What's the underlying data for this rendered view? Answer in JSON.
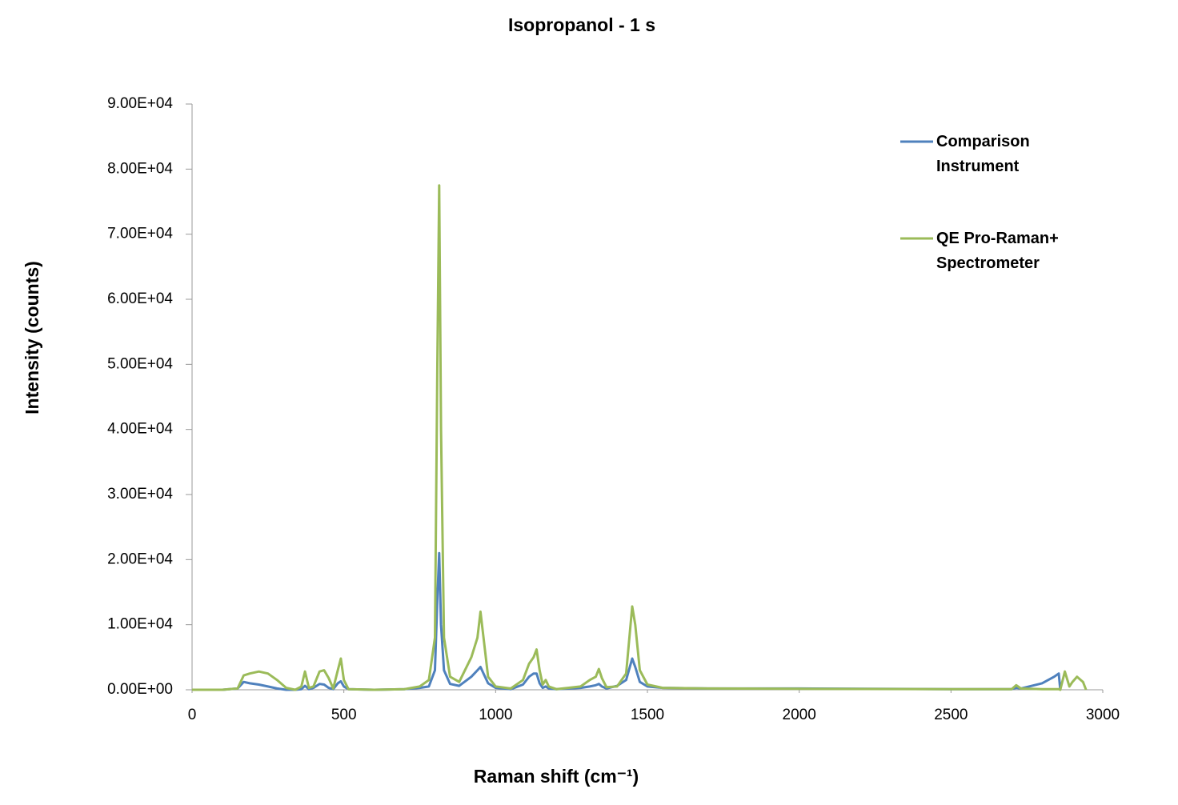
{
  "chart_data": {
    "type": "line",
    "title": "Isopropanol - 1 s",
    "x_label": "Raman shift (cm⁻¹)",
    "y_label": "Intensity (counts)",
    "x": [
      0,
      100,
      150,
      170,
      190,
      220,
      250,
      280,
      310,
      340,
      360,
      372,
      385,
      400,
      420,
      435,
      450,
      465,
      480,
      490,
      500,
      515,
      600,
      700,
      750,
      780,
      800,
      808,
      814,
      820,
      830,
      850,
      880,
      920,
      940,
      950,
      960,
      975,
      1000,
      1050,
      1090,
      1110,
      1125,
      1135,
      1145,
      1155,
      1165,
      1175,
      1200,
      1280,
      1310,
      1330,
      1340,
      1350,
      1365,
      1400,
      1430,
      1450,
      1460,
      1475,
      1500,
      1550,
      1700,
      2000,
      2500,
      2700,
      2715,
      2730,
      2800,
      2840,
      2855,
      2860,
      2875,
      2890,
      2900,
      2915,
      2935,
      2945
    ],
    "series": [
      {
        "name": "Comparison Instrument",
        "color": "#4f81bd",
        "values": [
          0,
          0,
          200,
          1200,
          1000,
          800,
          500,
          200,
          0,
          0,
          100,
          600,
          100,
          300,
          900,
          800,
          300,
          100,
          1000,
          1300,
          500,
          100,
          0,
          100,
          300,
          500,
          3000,
          14000,
          21000,
          10000,
          3000,
          900,
          600,
          2000,
          3000,
          3500,
          2500,
          1000,
          300,
          100,
          800,
          2000,
          2500,
          2500,
          1000,
          300,
          500,
          200,
          100,
          300,
          500,
          700,
          900,
          500,
          200,
          600,
          1500,
          4800,
          3500,
          1200,
          500,
          300,
          200,
          200,
          100,
          100,
          300,
          200,
          1000,
          2000,
          2500,
          0,
          null,
          null,
          null,
          null,
          null,
          null
        ]
      },
      {
        "name": "QE Pro-Raman+ Spectrometer",
        "color": "#9bbb59",
        "values": [
          0,
          0,
          200,
          2200,
          2500,
          2800,
          2500,
          1500,
          300,
          0,
          500,
          2800,
          300,
          500,
          2800,
          3000,
          1800,
          200,
          3000,
          4800,
          1500,
          100,
          0,
          100,
          500,
          1500,
          8000,
          50000,
          77500,
          40000,
          8000,
          2000,
          1200,
          5000,
          8000,
          12000,
          8000,
          2000,
          500,
          200,
          1500,
          4000,
          5000,
          6200,
          3000,
          800,
          1500,
          500,
          100,
          500,
          1500,
          2000,
          3200,
          1800,
          400,
          500,
          2500,
          12800,
          10000,
          3000,
          800,
          300,
          200,
          150,
          100,
          100,
          700,
          200,
          100,
          100,
          100,
          0,
          2800,
          500,
          1200,
          2000,
          1200,
          0
        ]
      }
    ],
    "xlim": [
      0,
      3000
    ],
    "xticks": [
      0,
      500,
      1000,
      1500,
      2000,
      2500,
      3000
    ],
    "ylim": [
      0,
      90000
    ],
    "yticks": [
      {
        "value": 0,
        "label": "0.00E+00"
      },
      {
        "value": 10000,
        "label": "1.00E+04"
      },
      {
        "value": 20000,
        "label": "2.00E+04"
      },
      {
        "value": 30000,
        "label": "3.00E+04"
      },
      {
        "value": 40000,
        "label": "4.00E+04"
      },
      {
        "value": 50000,
        "label": "5.00E+04"
      },
      {
        "value": 60000,
        "label": "6.00E+04"
      },
      {
        "value": 70000,
        "label": "7.00E+04"
      },
      {
        "value": 80000,
        "label": "8.00E+04"
      },
      {
        "value": 90000,
        "label": "9.00E+04"
      }
    ]
  }
}
